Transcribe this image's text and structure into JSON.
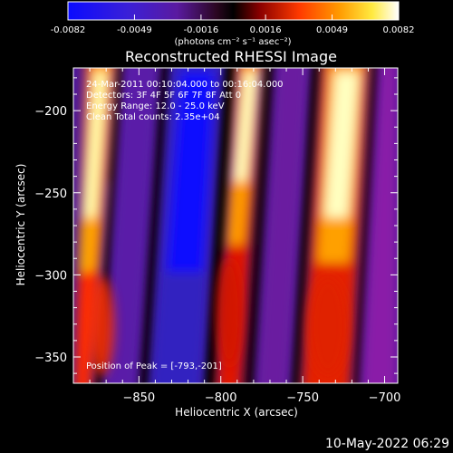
{
  "colorbar": {
    "ticks": [
      "-0.0082",
      "-0.0049",
      "-0.0016",
      "0.0016",
      "0.0049",
      "0.0082"
    ],
    "unit_label": "(photons cm⁻² s⁻¹ asec⁻²)",
    "range": [
      -0.0082,
      0.0082
    ]
  },
  "annotations": {
    "line1": "24-Mar-2011 00:10:04.000 to 00:16:04.000",
    "line2": "Detectors: 3F 4F 5F 6F 7F 8F  Att 0",
    "line3": "Energy Range: 12.0 - 25.0 keV",
    "line4": "Clean  Total counts: 2.35e+04",
    "peak": "Position of Peak = [-793,-201]"
  },
  "footer": {
    "timestamp": "10-May-2022 06:29"
  },
  "chart_data": {
    "type": "heatmap",
    "title": "Reconstructed RHESSI Image",
    "xlabel": "Heliocentric X (arcsec)",
    "ylabel": "Heliocentric Y (arcsec)",
    "xlim": [
      -890,
      -692
    ],
    "ylim": [
      -366,
      -174
    ],
    "xticks": [
      -850,
      -800,
      -750,
      -700
    ],
    "yticks": [
      -200,
      -250,
      -300,
      -350
    ],
    "xtick_labels": [
      "−850",
      "−800",
      "−750",
      "−700"
    ],
    "ytick_labels": [
      "−200",
      "−250",
      "−300",
      "−350"
    ],
    "colormap": "red-temperature with blue negatives",
    "peak_position": [
      -793,
      -201
    ],
    "bands": [
      {
        "x_top": -845,
        "x_bottom": -875,
        "polarity": "positive"
      },
      {
        "x_top": -805,
        "x_bottom": -827,
        "polarity": "negative"
      },
      {
        "x_top": -768,
        "x_bottom": -790,
        "polarity": "positive"
      },
      {
        "x_top": -725,
        "x_bottom": -755,
        "polarity": "positive"
      },
      {
        "x_top": -868,
        "x_bottom": -890,
        "polarity": "negative"
      }
    ]
  }
}
